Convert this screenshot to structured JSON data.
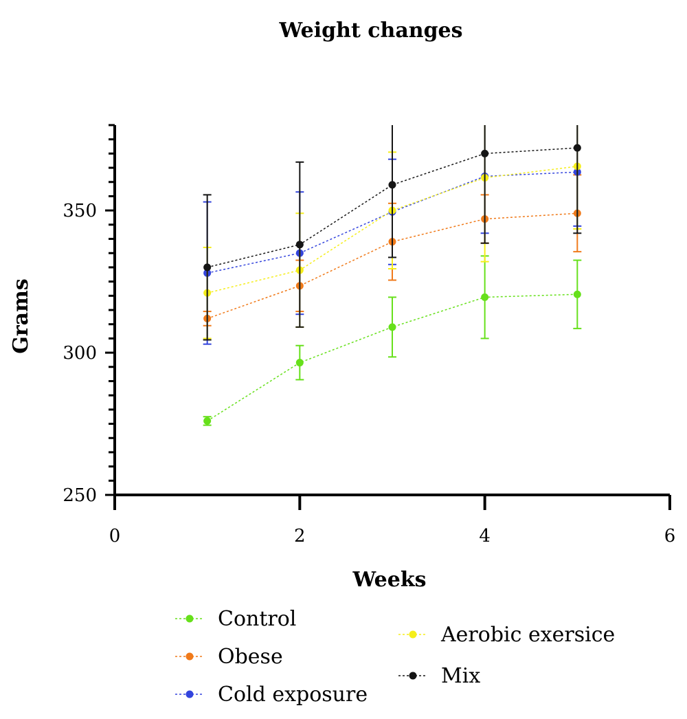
{
  "chart_data": {
    "type": "line",
    "title": "Weight changes",
    "xlabel": "Weeks",
    "ylabel": "Grams",
    "xlim": [
      0,
      6
    ],
    "ylim": [
      250,
      380
    ],
    "x_ticks": [
      0,
      2,
      4,
      6
    ],
    "y_ticks": [
      250,
      300,
      350
    ],
    "x": [
      1,
      2,
      3,
      4,
      5
    ],
    "grid": false,
    "legend_position": "bottom",
    "series": [
      {
        "name": "Control",
        "color": "#66e01a",
        "values": [
          276,
          296.5,
          309,
          319.5,
          320.5
        ],
        "errors": [
          1.5,
          6,
          10.5,
          14.5,
          12
        ]
      },
      {
        "name": "Obese",
        "color": "#f07a1a",
        "values": [
          312,
          323.5,
          339,
          347,
          349
        ],
        "errors": [
          2.5,
          9,
          13.5,
          8.5,
          13.5
        ]
      },
      {
        "name": "Cold exposure",
        "color": "#3344dd",
        "values": [
          328,
          335,
          349.5,
          362,
          363.5
        ],
        "errors": [
          25,
          21.5,
          18.5,
          20,
          19
        ]
      },
      {
        "name": "Aerobic exersice",
        "color": "#f5ee1a",
        "values": [
          321,
          329,
          350,
          361.5,
          365.5
        ],
        "errors": [
          16,
          20,
          20.5,
          29.5,
          22
        ]
      },
      {
        "name": "Mix",
        "color": "#151515",
        "values": [
          330,
          338,
          359,
          370,
          372
        ],
        "errors": [
          25.5,
          29,
          25.5,
          31.5,
          30
        ]
      }
    ]
  }
}
